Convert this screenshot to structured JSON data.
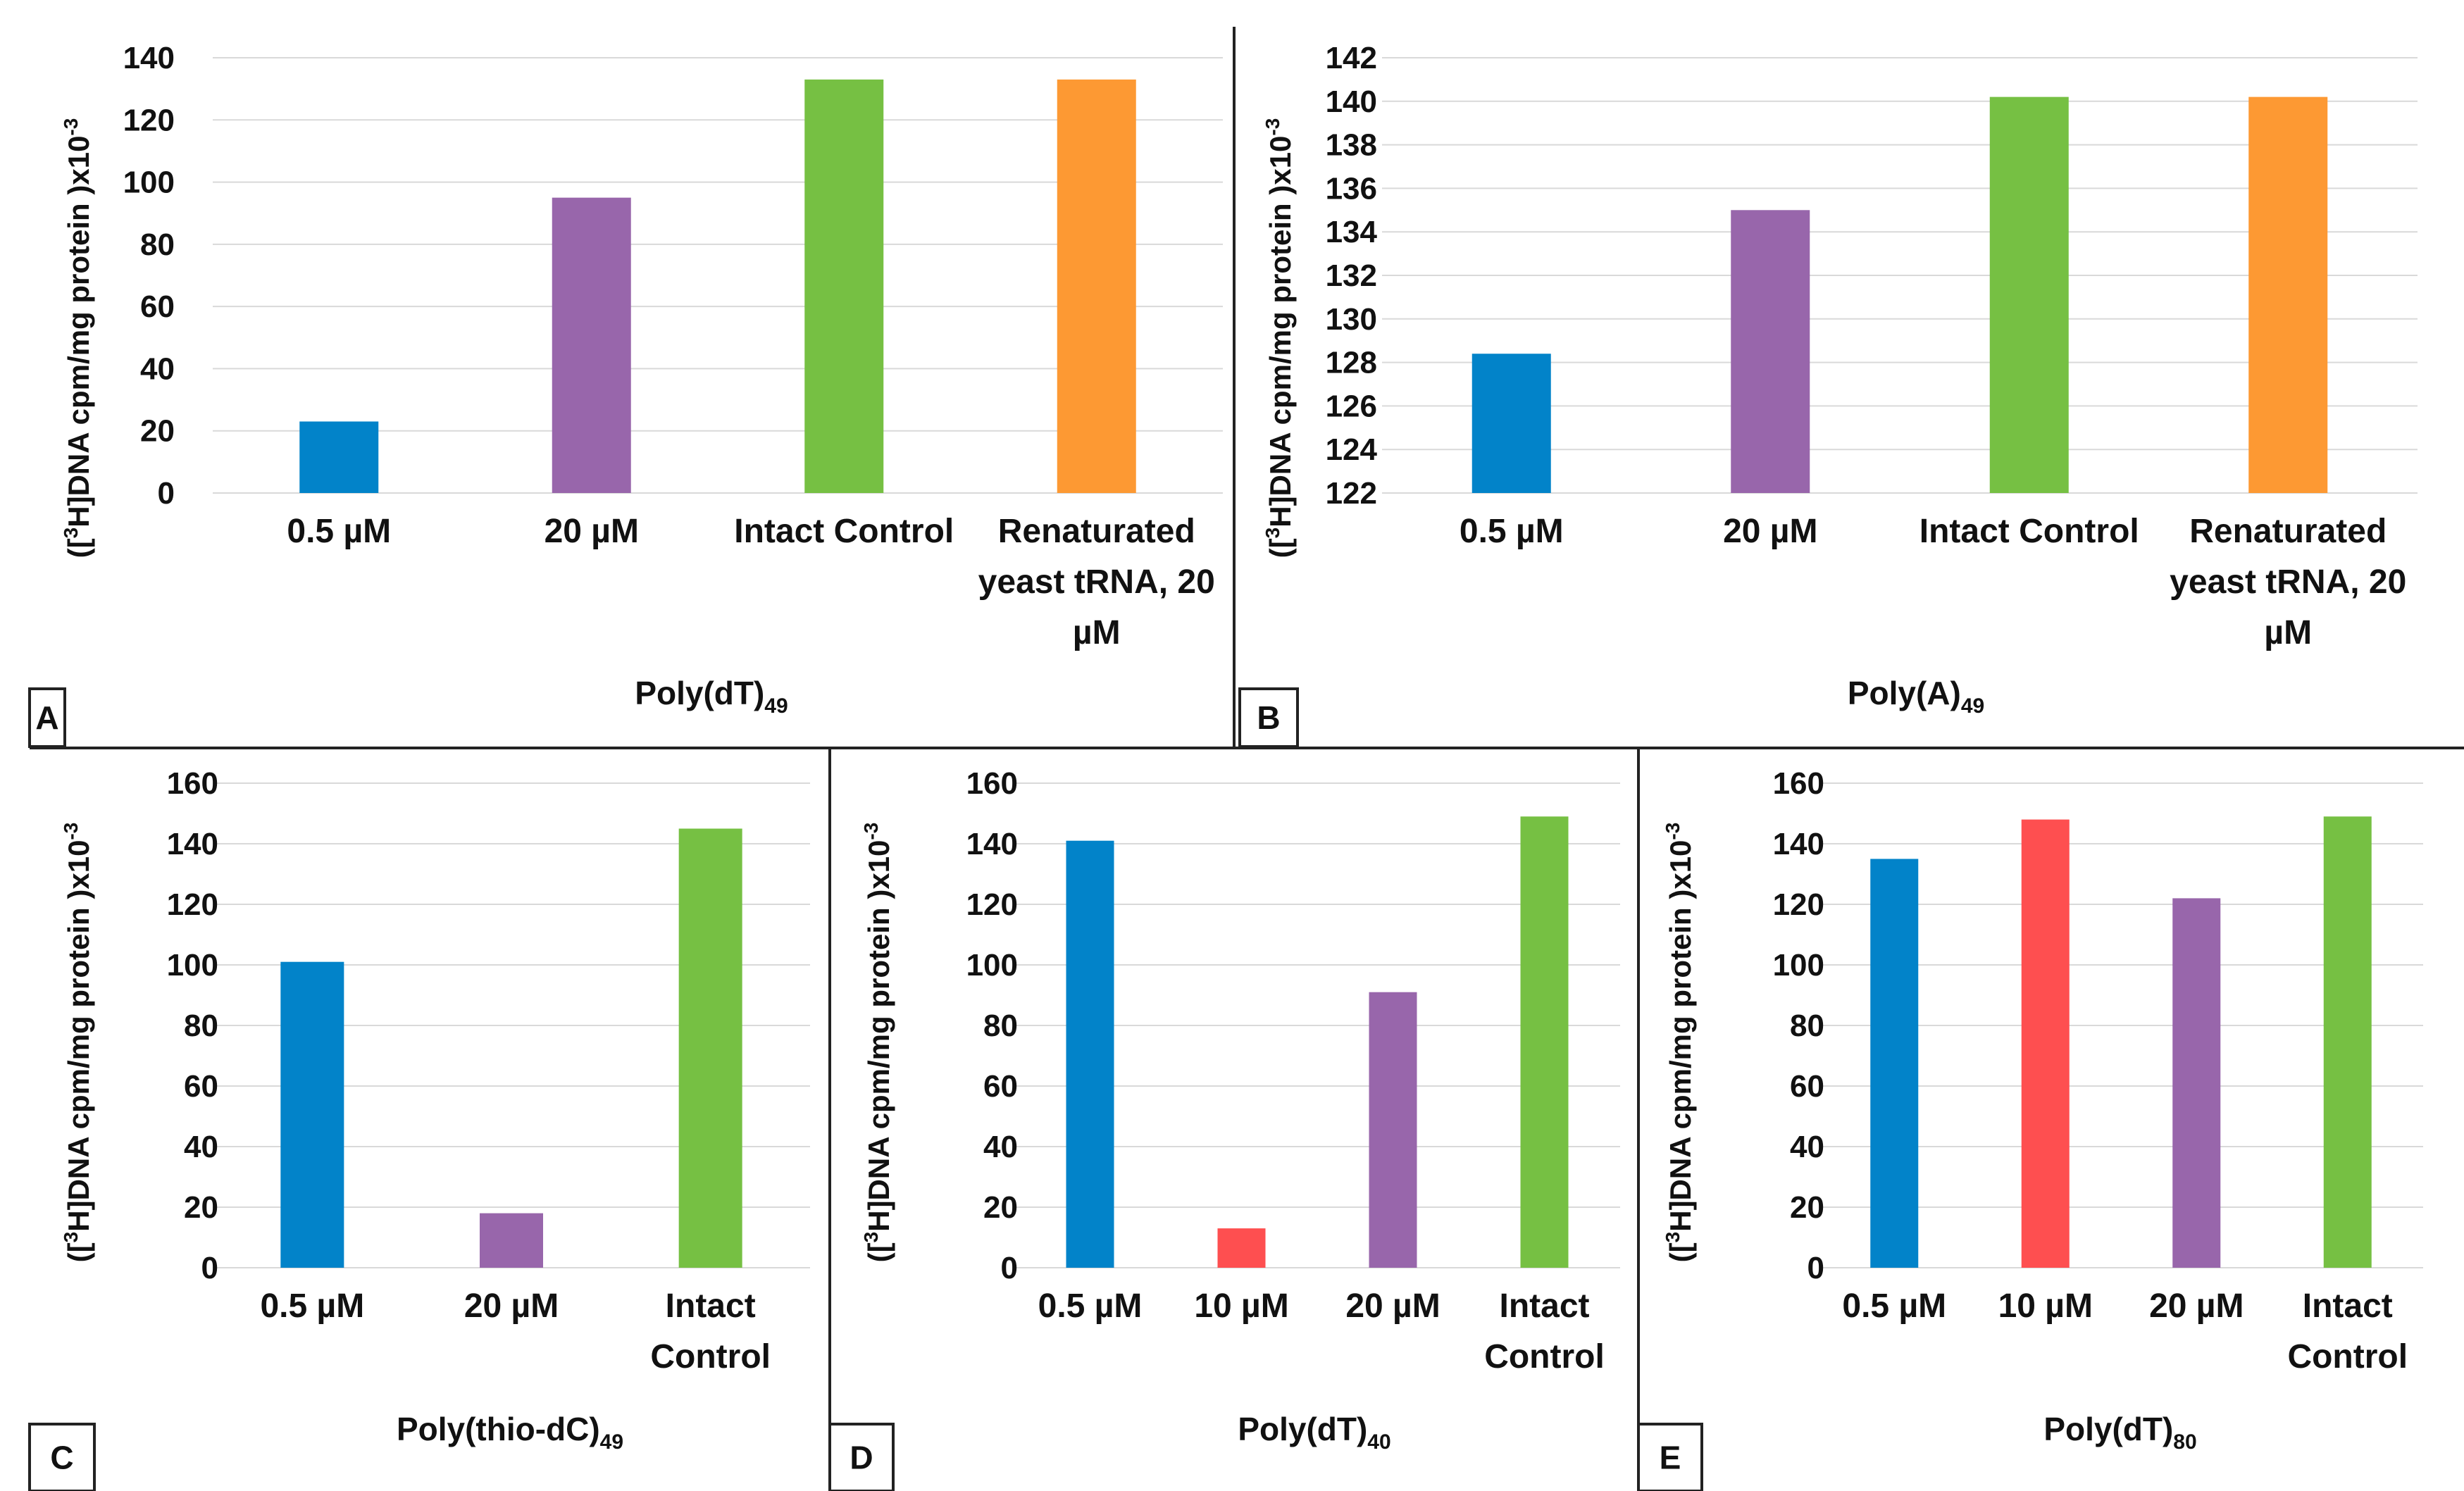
{
  "colors": {
    "blue": "#0283c9",
    "purple": "#9866ab",
    "green": "#76c043",
    "orange": "#fd9933",
    "red": "#fe4f50",
    "grid": "#d9d9d9",
    "divider": "#222222"
  },
  "chart_data": [
    {
      "id": "A",
      "panel_label": "A",
      "type": "bar",
      "title": "",
      "ylabel": {
        "pre": "([",
        "sup": "3",
        "post": "H]DNA cpm/mg protein )x10",
        "sup2": "-3"
      },
      "xlabel": {
        "main": "Poly(dT)",
        "sub": "49"
      },
      "ylim": [
        0,
        140
      ],
      "yticks": [
        0,
        20,
        40,
        60,
        80,
        100,
        120,
        140
      ],
      "categories": [
        [
          "0.5 µM"
        ],
        [
          "20 µM"
        ],
        [
          "Intact Control"
        ],
        [
          "Renaturated",
          "yeast tRNA, 20",
          "µM"
        ]
      ],
      "values": [
        23,
        95,
        133,
        133
      ],
      "bar_colors": [
        "blue",
        "purple",
        "green",
        "orange"
      ],
      "grid": true,
      "legend": "none"
    },
    {
      "id": "B",
      "panel_label": "B",
      "type": "bar",
      "title": "",
      "ylabel": {
        "pre": "([",
        "sup": "3",
        "post": "H]DNA cpm/mg protein )x10",
        "sup2": "-3"
      },
      "xlabel": {
        "main": "Poly(A)",
        "sub": "49"
      },
      "ylim": [
        122,
        142
      ],
      "yticks": [
        122,
        124,
        126,
        128,
        130,
        132,
        134,
        136,
        138,
        140,
        142
      ],
      "categories": [
        [
          "0.5 µM"
        ],
        [
          "20 µM"
        ],
        [
          "Intact Control"
        ],
        [
          "Renaturated",
          "yeast tRNA, 20",
          "µM"
        ]
      ],
      "values": [
        128.4,
        135,
        140.2,
        140.2
      ],
      "bar_colors": [
        "blue",
        "purple",
        "green",
        "orange"
      ],
      "grid": true,
      "legend": "none"
    },
    {
      "id": "C",
      "panel_label": "C",
      "type": "bar",
      "title": "",
      "ylabel": {
        "pre": "([",
        "sup": "3",
        "post": "H]DNA cpm/mg protein )x10",
        "sup2": "-3"
      },
      "xlabel": {
        "main": "Poly(thio-dC)",
        "sub": "49"
      },
      "ylim": [
        0,
        160
      ],
      "yticks": [
        0,
        20,
        40,
        60,
        80,
        100,
        120,
        140,
        160
      ],
      "categories": [
        [
          "0.5 µM"
        ],
        [
          "20 µM"
        ],
        [
          "Intact",
          "Control"
        ]
      ],
      "values": [
        101,
        18,
        145
      ],
      "bar_colors": [
        "blue",
        "purple",
        "green"
      ],
      "grid": true,
      "legend": "none"
    },
    {
      "id": "D",
      "panel_label": "D",
      "type": "bar",
      "title": "",
      "ylabel": {
        "pre": "([",
        "sup": "3",
        "post": "H]DNA cpm/mg protein )x10",
        "sup2": "-3"
      },
      "xlabel": {
        "main": "Poly(dT)",
        "sub": "40"
      },
      "ylim": [
        0,
        160
      ],
      "yticks": [
        0,
        20,
        40,
        60,
        80,
        100,
        120,
        140,
        160
      ],
      "categories": [
        [
          "0.5 µM"
        ],
        [
          "10 µM"
        ],
        [
          "20 µM"
        ],
        [
          "Intact",
          "Control"
        ]
      ],
      "values": [
        141,
        13,
        91,
        149
      ],
      "bar_colors": [
        "blue",
        "red",
        "purple",
        "green"
      ],
      "grid": true,
      "legend": "none"
    },
    {
      "id": "E",
      "panel_label": "E",
      "type": "bar",
      "title": "",
      "ylabel": {
        "pre": "([",
        "sup": "3",
        "post": "H]DNA cpm/mg protein )x10",
        "sup2": "-3"
      },
      "xlabel": {
        "main": "Poly(dT)",
        "sub": "80"
      },
      "ylim": [
        0,
        160
      ],
      "yticks": [
        0,
        20,
        40,
        60,
        80,
        100,
        120,
        140,
        160
      ],
      "categories": [
        [
          "0.5 µM"
        ],
        [
          "10 µM"
        ],
        [
          "20 µM"
        ],
        [
          "Intact",
          "Control"
        ]
      ],
      "values": [
        135,
        148,
        122,
        149
      ],
      "bar_colors": [
        "blue",
        "red",
        "purple",
        "green"
      ],
      "grid": true,
      "legend": "none"
    }
  ]
}
